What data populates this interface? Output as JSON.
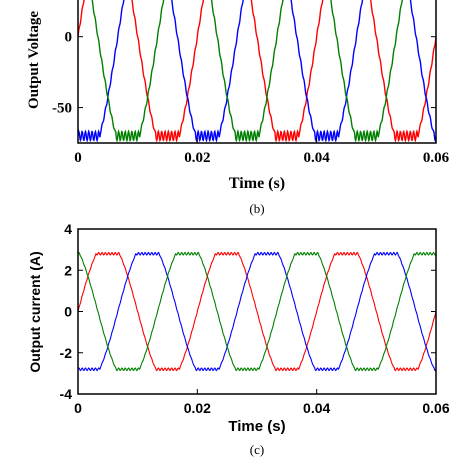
{
  "chart_data": [
    {
      "type": "line",
      "caption": "(b)",
      "title": "",
      "xlabel": "Time (s)",
      "ylabel": "Output Voltage",
      "xlim": [
        0,
        0.06
      ],
      "ylim": [
        -75,
        40
      ],
      "xticks": [
        "0",
        "0.02",
        "0.04",
        "0.06"
      ],
      "yticks": [
        "0",
        "-50"
      ],
      "frequency_hz": 50,
      "series": [
        {
          "color": "#ff0000",
          "amplitude": 70,
          "phase_deg": 0
        },
        {
          "color": "#0000ff",
          "amplitude": 70,
          "phase_deg": -120
        },
        {
          "color": "#008000",
          "amplitude": 70,
          "phase_deg": 120
        }
      ]
    },
    {
      "type": "line",
      "caption": "(c)",
      "title": "",
      "xlabel": "Time (s)",
      "ylabel": "Output current (A)",
      "xlim": [
        0,
        0.06
      ],
      "ylim": [
        -4,
        4
      ],
      "xticks": [
        "0",
        "0.02",
        "0.04",
        "0.06"
      ],
      "yticks": [
        "4",
        "2",
        "0",
        "-2",
        "-4"
      ],
      "frequency_hz": 50,
      "series": [
        {
          "color": "#ff0000",
          "amplitude": 2.8,
          "phase_deg": 0
        },
        {
          "color": "#0000ff",
          "amplitude": 2.8,
          "phase_deg": -120
        },
        {
          "color": "#008000",
          "amplitude": 2.8,
          "phase_deg": 120
        }
      ]
    }
  ]
}
